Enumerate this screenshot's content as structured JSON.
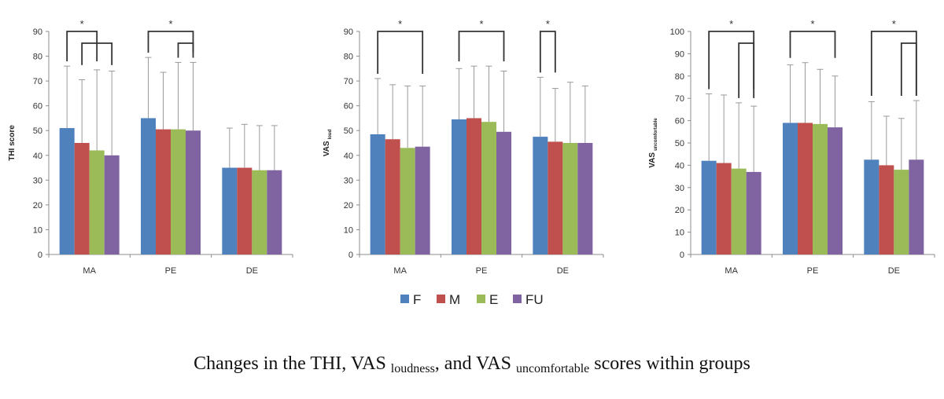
{
  "chart_data": [
    {
      "type": "bar",
      "categories": [
        "MA",
        "PE",
        "DE"
      ],
      "ylabel": "THI score",
      "ylabel_sub": "",
      "ylim": [
        0,
        90
      ],
      "yticks": [
        0,
        10,
        20,
        30,
        40,
        50,
        60,
        70,
        80,
        90
      ],
      "grid": false,
      "series": [
        {
          "name": "F",
          "values": [
            51,
            55,
            35
          ],
          "errors": [
            25,
            24.5,
            16
          ]
        },
        {
          "name": "M",
          "values": [
            45,
            50.5,
            35
          ],
          "errors": [
            25.5,
            23,
            17.5
          ]
        },
        {
          "name": "E",
          "values": [
            42,
            50.5,
            34
          ],
          "errors": [
            32.5,
            27,
            18
          ]
        },
        {
          "name": "FU",
          "values": [
            40,
            50,
            34
          ],
          "errors": [
            34,
            27.5,
            18
          ]
        }
      ],
      "annotations": [
        {
          "text": "*",
          "category": "MA",
          "brackets": [
            [
              0,
              2
            ],
            [
              1,
              3
            ]
          ]
        },
        {
          "text": "*",
          "category": "PE",
          "brackets": [
            [
              0,
              3
            ],
            [
              2,
              3
            ]
          ]
        }
      ]
    },
    {
      "type": "bar",
      "categories": [
        "MA",
        "PE",
        "DE"
      ],
      "ylabel": "VAS",
      "ylabel_sub": "loud",
      "ylim": [
        0,
        90
      ],
      "yticks": [
        0,
        10,
        20,
        30,
        40,
        50,
        60,
        70,
        80,
        90
      ],
      "grid": false,
      "series": [
        {
          "name": "F",
          "values": [
            48.5,
            54.5,
            47.5
          ],
          "errors": [
            22.5,
            20.5,
            24
          ]
        },
        {
          "name": "M",
          "values": [
            46.5,
            55,
            45.5
          ],
          "errors": [
            22,
            21,
            21.5
          ]
        },
        {
          "name": "E",
          "values": [
            43,
            53.5,
            45
          ],
          "errors": [
            25,
            22.5,
            24.5
          ]
        },
        {
          "name": "FU",
          "values": [
            43.5,
            49.5,
            45
          ],
          "errors": [
            24.5,
            24.5,
            23
          ]
        }
      ],
      "annotations": [
        {
          "text": "*",
          "category": "MA",
          "brackets": [
            [
              0,
              3
            ]
          ]
        },
        {
          "text": "*",
          "category": "PE",
          "brackets": [
            [
              0,
              3
            ]
          ]
        },
        {
          "text": "*",
          "category": "DE",
          "brackets": [
            [
              0,
              1
            ]
          ]
        }
      ]
    },
    {
      "type": "bar",
      "categories": [
        "MA",
        "PE",
        "DE"
      ],
      "ylabel": "VAS",
      "ylabel_sub": "uncomfortable",
      "ylim": [
        0,
        100
      ],
      "yticks": [
        0,
        10,
        20,
        30,
        40,
        50,
        60,
        70,
        80,
        90,
        100
      ],
      "grid": false,
      "series": [
        {
          "name": "F",
          "values": [
            42,
            59,
            42.5
          ],
          "errors": [
            30,
            26,
            26
          ]
        },
        {
          "name": "M",
          "values": [
            41,
            59,
            40
          ],
          "errors": [
            30.5,
            27,
            22
          ]
        },
        {
          "name": "E",
          "values": [
            38.5,
            58.5,
            38
          ],
          "errors": [
            29.5,
            24.5,
            23
          ]
        },
        {
          "name": "FU",
          "values": [
            37,
            57,
            42.5
          ],
          "errors": [
            29.5,
            23,
            26.5
          ]
        }
      ],
      "annotations": [
        {
          "text": "*",
          "category": "MA",
          "brackets": [
            [
              0,
              3
            ],
            [
              2,
              3
            ]
          ]
        },
        {
          "text": "*",
          "category": "PE",
          "brackets": [
            [
              0,
              3
            ]
          ]
        },
        {
          "text": "*",
          "category": "DE",
          "brackets": [
            [
              0,
              3
            ],
            [
              2,
              3
            ]
          ]
        }
      ]
    }
  ],
  "legend": {
    "position": "bottom-center",
    "items": [
      {
        "label": "F",
        "color": "#4f81bd"
      },
      {
        "label": "M",
        "color": "#c0504d"
      },
      {
        "label": "E",
        "color": "#9bbb59"
      },
      {
        "label": "FU",
        "color": "#8064a2"
      }
    ]
  },
  "caption": {
    "text_1": "Changes in the THI, VAS ",
    "sub_1": "loudness",
    "text_2": ", and VAS ",
    "sub_2": "uncomfortable",
    "text_3": " scores within groups"
  }
}
